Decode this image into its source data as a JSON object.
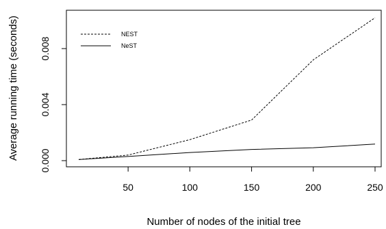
{
  "chart_data": {
    "type": "line",
    "xlabel": "Number of nodes of the initial tree",
    "ylabel": "Average running time (seconds)",
    "x_ticks": [
      50,
      100,
      150,
      200,
      250
    ],
    "x_tick_labels": [
      "50",
      "100",
      "150",
      "200",
      "250"
    ],
    "y_ticks": [
      0.0,
      0.004,
      0.008
    ],
    "y_tick_labels": [
      "0.000",
      "0.004",
      "0.008"
    ],
    "xlim": [
      10,
      250
    ],
    "ylim": [
      0.0,
      0.0102
    ],
    "legend_position": "top-left",
    "grid": false,
    "series": [
      {
        "name": "NEST",
        "line_style": "dashed",
        "color": "#000000",
        "x": [
          10,
          50,
          100,
          150,
          200,
          250
        ],
        "y": [
          8e-05,
          0.0004,
          0.0015,
          0.0029,
          0.0072,
          0.0102
        ]
      },
      {
        "name": "NeST",
        "line_style": "solid",
        "color": "#000000",
        "x": [
          10,
          50,
          100,
          150,
          200,
          250
        ],
        "y": [
          8e-05,
          0.0003,
          0.00058,
          0.0008,
          0.00092,
          0.00118
        ]
      }
    ]
  }
}
